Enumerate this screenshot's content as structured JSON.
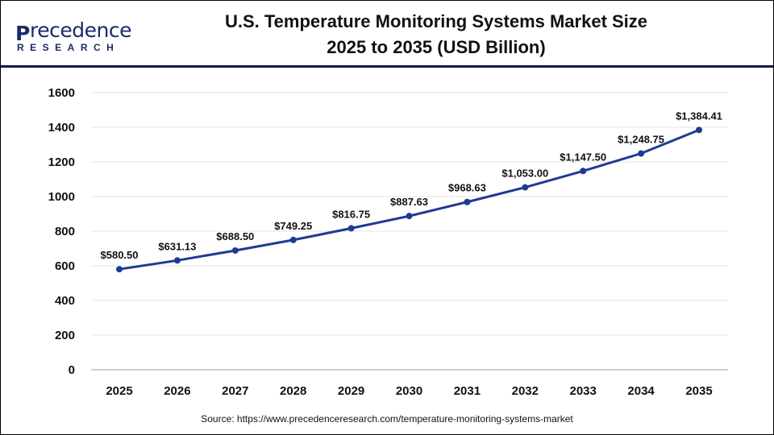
{
  "logo": {
    "name": "recedence",
    "mark": "P",
    "sub": "RESEARCH",
    "full": "Precedence Research"
  },
  "title_line1": "U.S. Temperature Monitoring Systems Market Size",
  "title_line2": "2025 to 2035 (USD Billion)",
  "source": "Source: https://www.precedenceresearch.com/temperature-monitoring-systems-market",
  "chart_data": {
    "type": "line",
    "title": "U.S. Temperature Monitoring Systems Market Size 2025 to 2035 (USD Billion)",
    "categories": [
      "2025",
      "2026",
      "2027",
      "2028",
      "2029",
      "2030",
      "2031",
      "2032",
      "2033",
      "2034",
      "2035"
    ],
    "values": [
      580.5,
      631.13,
      688.5,
      749.25,
      816.75,
      887.63,
      968.63,
      1053.0,
      1147.5,
      1248.75,
      1384.41
    ],
    "data_labels": [
      "$580.50",
      "$631.13",
      "$688.50",
      "$749.25",
      "$816.75",
      "$887.63",
      "$968.63",
      "$1,053.00",
      "$1,147.50",
      "$1,248.75",
      "$1,384.41"
    ],
    "yticks": [
      0,
      200,
      400,
      600,
      800,
      1000,
      1200,
      1400,
      1600
    ],
    "ylim": [
      0,
      1600
    ],
    "grid": true,
    "line_color": "#1f3a93"
  }
}
